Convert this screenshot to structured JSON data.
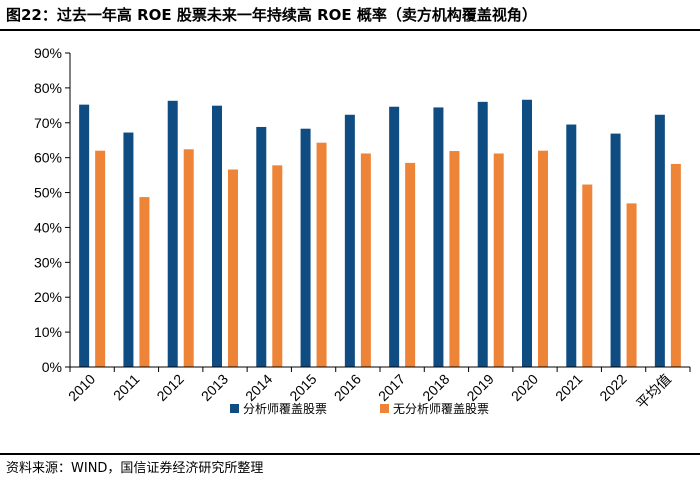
{
  "header": {
    "title": "图22：过去一年高 ROE 股票未来一年持续高 ROE 概率（卖方机构覆盖视角）"
  },
  "footer": {
    "source": "资料来源：WIND，国信证券经济研究所整理"
  },
  "chart_data": {
    "type": "bar",
    "title": "过去一年高 ROE 股票未来一年持续高 ROE 概率（卖方机构覆盖视角）",
    "xlabel": "",
    "ylabel": "",
    "ylim": [
      0,
      90
    ],
    "ytick_step": 10,
    "ytick_labels": [
      "0%",
      "10%",
      "20%",
      "30%",
      "40%",
      "50%",
      "60%",
      "70%",
      "80%",
      "90%"
    ],
    "grid": false,
    "legend_position": "bottom-center",
    "categories": [
      "2010",
      "2011",
      "2012",
      "2013",
      "2014",
      "2015",
      "2016",
      "2017",
      "2018",
      "2019",
      "2020",
      "2021",
      "2022",
      "平均值"
    ],
    "series": [
      {
        "name": "分析师覆盖股票",
        "color": "#0f4c81",
        "values": [
          75.2,
          67.2,
          76.3,
          74.9,
          68.8,
          68.3,
          72.3,
          74.6,
          74.4,
          76.0,
          76.6,
          69.5,
          66.9,
          72.3
        ]
      },
      {
        "name": "无分析师覆盖股票",
        "color": "#ee8438",
        "values": [
          62.0,
          48.7,
          62.4,
          56.6,
          57.8,
          64.3,
          61.2,
          58.5,
          61.9,
          61.2,
          62.0,
          52.3,
          46.9,
          58.2
        ]
      }
    ]
  }
}
